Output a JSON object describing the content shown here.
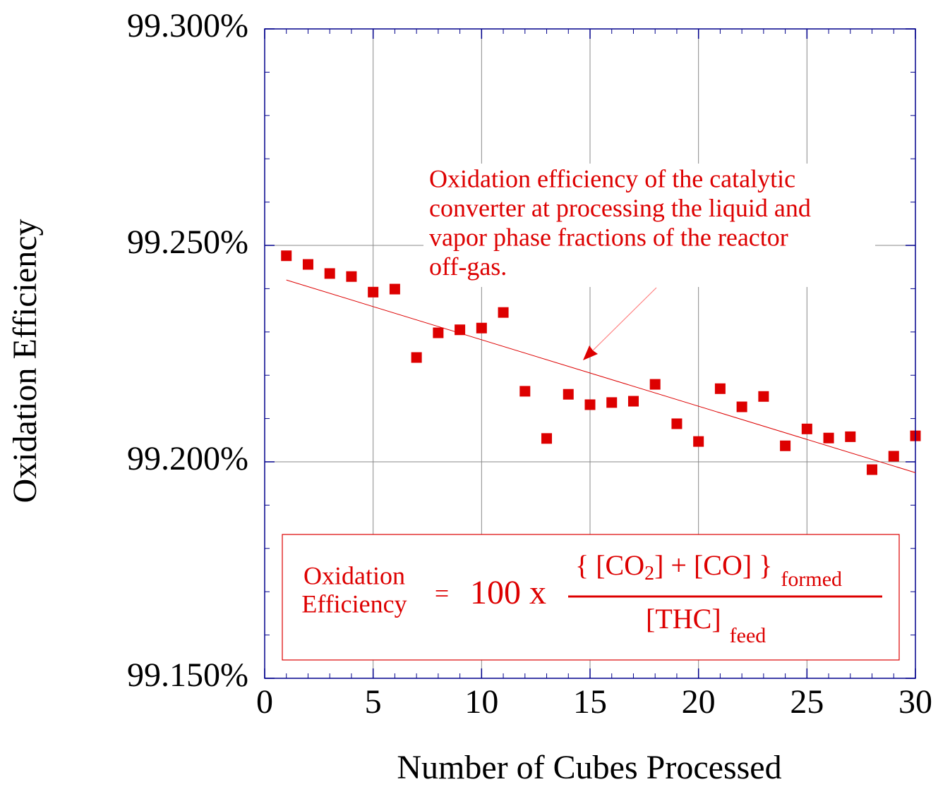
{
  "chart_data": {
    "type": "scatter",
    "x_label": "Number of Cubes Processed",
    "y_label": "Oxidation Efficiency",
    "color": "#dd0000",
    "xlim": [
      0,
      30
    ],
    "ylim": [
      99.15,
      99.3
    ],
    "xticks": [
      0,
      5,
      10,
      15,
      20,
      25,
      30
    ],
    "yticks": [
      {
        "value": 99.15,
        "label": "99.150%"
      },
      {
        "value": 99.2,
        "label": "99.200%"
      },
      {
        "value": 99.25,
        "label": "99.250%"
      },
      {
        "value": 99.3,
        "label": "99.300%"
      }
    ],
    "xminorticks": [
      0,
      1,
      2,
      3,
      4,
      5,
      6,
      7,
      8,
      9,
      10,
      11,
      12,
      13,
      14,
      15,
      16,
      17,
      18,
      19,
      20,
      21,
      22,
      23,
      24,
      25,
      26,
      27,
      28,
      29,
      30
    ],
    "yminorticks": [
      99.15,
      99.16,
      99.17,
      99.18,
      99.19,
      99.2,
      99.21,
      99.22,
      99.23,
      99.24,
      99.25,
      99.26,
      99.27,
      99.28,
      99.29,
      99.3
    ],
    "grid": true,
    "x": [
      1,
      2,
      3,
      4,
      5,
      6,
      7,
      8,
      9,
      10,
      11,
      12,
      13,
      14,
      15,
      16,
      17,
      18,
      19,
      20,
      21,
      22,
      23,
      24,
      25,
      26,
      27,
      28,
      29,
      30
    ],
    "values": [
      99.2476,
      99.2456,
      99.2435,
      99.2428,
      99.2392,
      99.2399,
      99.2241,
      99.2298,
      99.2305,
      99.2309,
      99.2345,
      99.2163,
      99.2054,
      99.2156,
      99.2132,
      99.2137,
      99.214,
      99.2179,
      99.2088,
      99.2047,
      99.2169,
      99.2127,
      99.2151,
      99.2037,
      99.2076,
      99.2055,
      99.2058,
      99.1982,
      99.2013,
      99.206
    ],
    "trendline": {
      "x": [
        1,
        30
      ],
      "values": [
        99.242,
        99.1975
      ]
    },
    "annotation": [
      "Oxidation efficiency of the catalytic",
      "converter at processing the liquid and",
      "vapor phase fractions of the reactor",
      "off-gas."
    ],
    "formula": {
      "lhs": [
        "Oxidation",
        "Efficiency"
      ],
      "equals": "=",
      "factor": "100 x",
      "num_a": "{ [CO",
      "num_sub": "2",
      "num_b": "] + [CO] }",
      "num_tail": "formed",
      "den": "[THC]",
      "den_tail": "feed"
    }
  }
}
